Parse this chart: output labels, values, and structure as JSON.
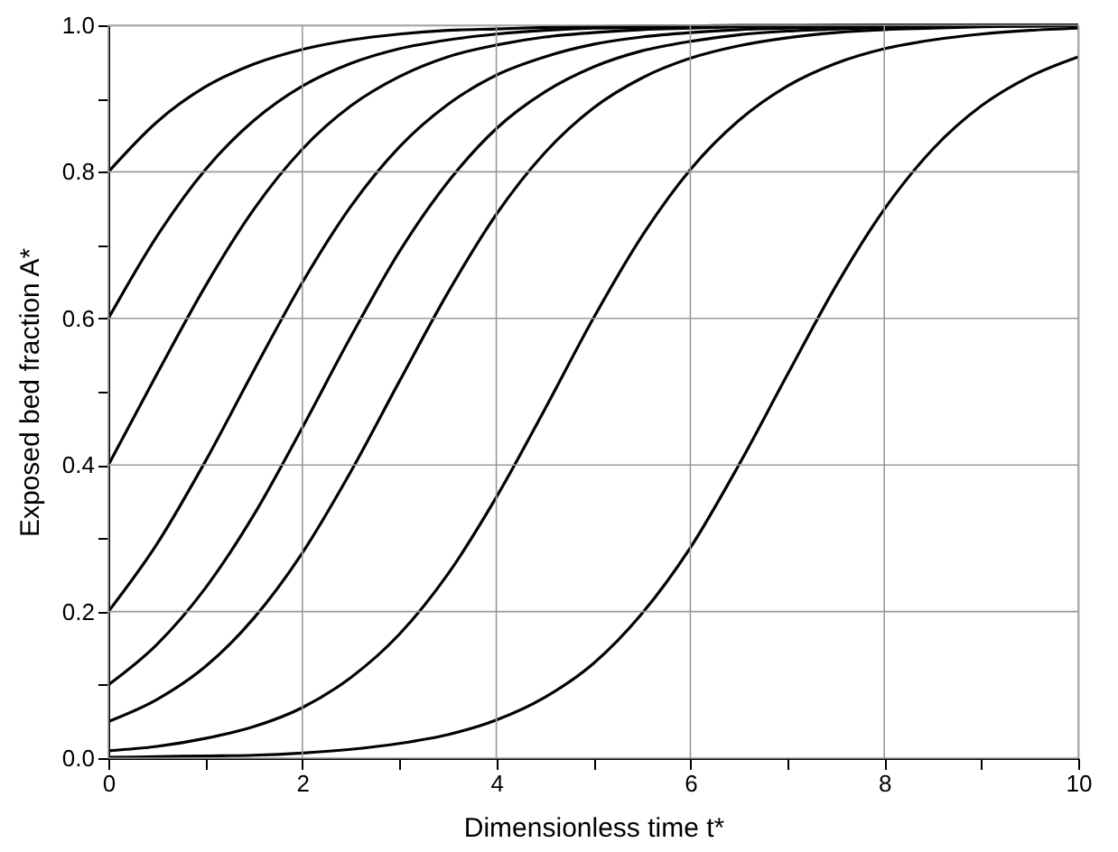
{
  "chart_data": {
    "type": "line",
    "xlabel": "Dimensionless time t*",
    "ylabel": "Exposed bed fraction A*",
    "x": [
      0,
      0.5,
      1,
      1.5,
      2,
      2.5,
      3,
      3.5,
      4,
      4.5,
      5,
      5.5,
      6,
      6.5,
      7,
      7.5,
      8,
      8.5,
      9,
      9.5,
      10
    ],
    "series": [
      {
        "color": "#000000",
        "values": [
          0.8,
          0.868,
          0.916,
          0.947,
          0.967,
          0.98,
          0.988,
          0.993,
          0.995,
          0.997,
          0.998,
          0.999,
          0.999,
          1,
          1,
          1,
          1,
          1,
          1,
          1,
          1
        ]
      },
      {
        "color": "#000000",
        "values": [
          0.6,
          0.712,
          0.803,
          0.87,
          0.917,
          0.948,
          0.968,
          0.98,
          0.988,
          0.993,
          0.996,
          0.997,
          0.998,
          0.999,
          0.999,
          1,
          1,
          1,
          1,
          1,
          1
        ]
      },
      {
        "color": "#000000",
        "values": [
          0.4,
          0.524,
          0.644,
          0.749,
          0.831,
          0.89,
          0.93,
          0.957,
          0.973,
          0.984,
          0.99,
          0.994,
          0.996,
          0.998,
          0.999,
          0.999,
          1,
          1,
          1,
          1,
          1
        ]
      },
      {
        "color": "#000000",
        "values": [
          0.2,
          0.292,
          0.405,
          0.529,
          0.649,
          0.753,
          0.834,
          0.892,
          0.932,
          0.957,
          0.974,
          0.984,
          0.99,
          0.994,
          0.996,
          0.998,
          0.999,
          0.999,
          1,
          1,
          1
        ]
      },
      {
        "color": "#000000",
        "values": [
          0.1,
          0.155,
          0.232,
          0.332,
          0.451,
          0.575,
          0.691,
          0.786,
          0.859,
          0.909,
          0.943,
          0.965,
          0.978,
          0.987,
          0.992,
          0.995,
          0.997,
          0.998,
          0.999,
          0.999,
          1
        ]
      },
      {
        "color": "#000000",
        "values": [
          0.05,
          0.08,
          0.125,
          0.191,
          0.28,
          0.391,
          0.514,
          0.635,
          0.742,
          0.826,
          0.887,
          0.928,
          0.955,
          0.972,
          0.983,
          0.99,
          0.994,
          0.996,
          0.998,
          0.999,
          0.999
        ]
      },
      {
        "color": "#000000",
        "values": [
          0.01,
          0.016,
          0.027,
          0.043,
          0.069,
          0.11,
          0.169,
          0.251,
          0.356,
          0.476,
          0.6,
          0.712,
          0.803,
          0.87,
          0.917,
          0.948,
          0.968,
          0.98,
          0.988,
          0.993,
          0.996
        ]
      },
      {
        "color": "#000000",
        "values": [
          0.001,
          0.002,
          0.003,
          0.004,
          0.007,
          0.012,
          0.02,
          0.032,
          0.052,
          0.083,
          0.129,
          0.197,
          0.287,
          0.4,
          0.523,
          0.644,
          0.749,
          0.831,
          0.89,
          0.93,
          0.957
        ]
      }
    ],
    "xlim": [
      0,
      10
    ],
    "xticks": [
      0,
      {
        "value": 1,
        "label": null
      },
      2,
      {
        "value": 3,
        "label": null
      },
      4,
      {
        "value": 5,
        "label": null
      },
      6,
      {
        "value": 7,
        "label": null
      },
      8,
      {
        "value": 9,
        "label": null
      },
      10
    ],
    "ylim": [
      0,
      1
    ],
    "yticks": [
      {
        "value": 0,
        "label": "0.0"
      },
      {
        "value": 0.1,
        "label": null
      },
      {
        "value": 0.2,
        "label": "0.2"
      },
      {
        "value": 0.3,
        "label": null
      },
      {
        "value": 0.4,
        "label": "0.4"
      },
      {
        "value": 0.5,
        "label": null
      },
      {
        "value": 0.6,
        "label": "0.6"
      },
      {
        "value": 0.7,
        "label": null
      },
      {
        "value": 0.8,
        "label": "0.8"
      },
      {
        "value": 0.9,
        "label": null
      },
      {
        "value": 1,
        "label": "1.0"
      }
    ],
    "grid": true,
    "legend": false,
    "marker": "none",
    "line_style": "solid"
  }
}
